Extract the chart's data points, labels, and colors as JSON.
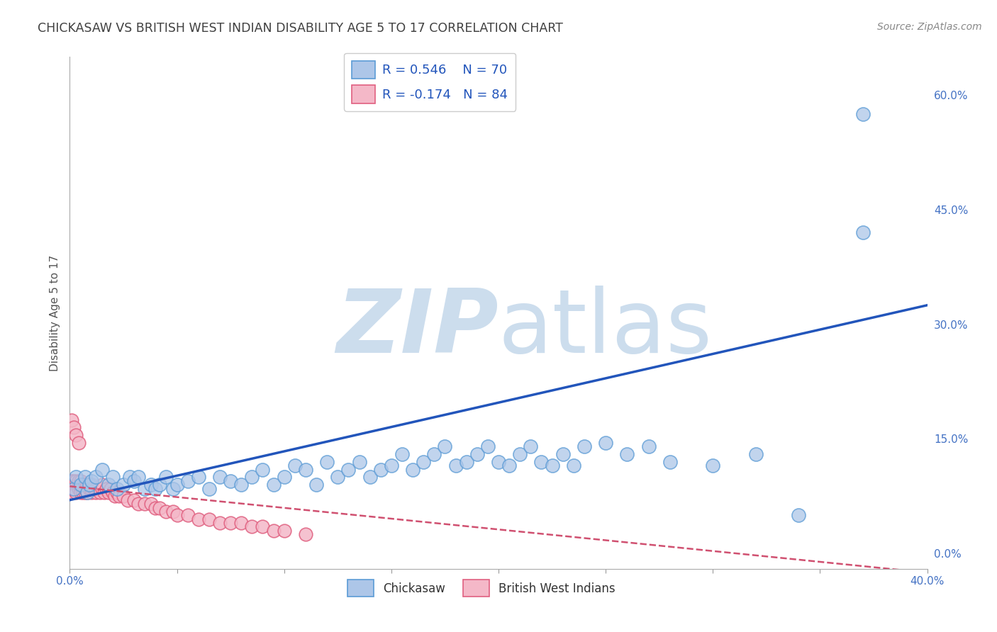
{
  "title": "CHICKASAW VS BRITISH WEST INDIAN DISABILITY AGE 5 TO 17 CORRELATION CHART",
  "source": "Source: ZipAtlas.com",
  "ylabel": "Disability Age 5 to 17",
  "ytick_labels": [
    "0.0%",
    "15.0%",
    "30.0%",
    "45.0%",
    "60.0%"
  ],
  "ytick_values": [
    0.0,
    0.15,
    0.3,
    0.45,
    0.6
  ],
  "xlim": [
    0.0,
    0.4
  ],
  "ylim": [
    -0.02,
    0.65
  ],
  "chickasaw_color": "#adc6e8",
  "chickasaw_edge": "#5b9bd5",
  "bwi_color": "#f4b8c8",
  "bwi_edge": "#e06080",
  "trendline_chickasaw_color": "#2255bb",
  "trendline_bwi_color": "#d05070",
  "R_chickasaw": 0.546,
  "N_chickasaw": 70,
  "R_bwi": -0.174,
  "N_bwi": 84,
  "legend_label_chickasaw": "Chickasaw",
  "legend_label_bwi": "British West Indians",
  "background_color": "#ffffff",
  "grid_color": "#cccccc",
  "watermark_color": "#ccdded",
  "title_color": "#404040",
  "axis_label_color": "#555555",
  "tick_label_color": "#4472c4",
  "trendline_chick_x0": 0.0,
  "trendline_chick_y0": 0.07,
  "trendline_chick_x1": 0.4,
  "trendline_chick_y1": 0.325,
  "trendline_bwi_x0": 0.0,
  "trendline_bwi_y0": 0.088,
  "trendline_bwi_x1": 0.4,
  "trendline_bwi_y1": -0.025,
  "chickasaw_x": [
    0.002,
    0.003,
    0.005,
    0.007,
    0.008,
    0.009,
    0.01,
    0.012,
    0.015,
    0.018,
    0.02,
    0.022,
    0.025,
    0.028,
    0.03,
    0.032,
    0.035,
    0.038,
    0.04,
    0.042,
    0.045,
    0.048,
    0.05,
    0.055,
    0.06,
    0.065,
    0.07,
    0.075,
    0.08,
    0.085,
    0.09,
    0.095,
    0.1,
    0.105,
    0.11,
    0.115,
    0.12,
    0.125,
    0.13,
    0.135,
    0.14,
    0.145,
    0.15,
    0.155,
    0.16,
    0.165,
    0.17,
    0.175,
    0.18,
    0.185,
    0.19,
    0.195,
    0.2,
    0.205,
    0.21,
    0.215,
    0.22,
    0.225,
    0.23,
    0.235,
    0.24,
    0.25,
    0.26,
    0.27,
    0.28,
    0.3,
    0.32,
    0.34,
    0.37,
    0.37
  ],
  "chickasaw_y": [
    0.085,
    0.1,
    0.09,
    0.1,
    0.08,
    0.09,
    0.095,
    0.1,
    0.11,
    0.09,
    0.1,
    0.085,
    0.09,
    0.1,
    0.095,
    0.1,
    0.085,
    0.09,
    0.085,
    0.09,
    0.1,
    0.085,
    0.09,
    0.095,
    0.1,
    0.085,
    0.1,
    0.095,
    0.09,
    0.1,
    0.11,
    0.09,
    0.1,
    0.115,
    0.11,
    0.09,
    0.12,
    0.1,
    0.11,
    0.12,
    0.1,
    0.11,
    0.115,
    0.13,
    0.11,
    0.12,
    0.13,
    0.14,
    0.115,
    0.12,
    0.13,
    0.14,
    0.12,
    0.115,
    0.13,
    0.14,
    0.12,
    0.115,
    0.13,
    0.115,
    0.14,
    0.145,
    0.13,
    0.14,
    0.12,
    0.115,
    0.13,
    0.05,
    0.42,
    0.575
  ],
  "bwi_x": [
    0.001,
    0.001,
    0.001,
    0.001,
    0.001,
    0.001,
    0.001,
    0.001,
    0.001,
    0.001,
    0.002,
    0.002,
    0.002,
    0.002,
    0.002,
    0.003,
    0.003,
    0.003,
    0.003,
    0.003,
    0.004,
    0.004,
    0.004,
    0.005,
    0.005,
    0.005,
    0.005,
    0.005,
    0.006,
    0.006,
    0.006,
    0.007,
    0.007,
    0.007,
    0.007,
    0.008,
    0.008,
    0.008,
    0.009,
    0.009,
    0.01,
    0.01,
    0.01,
    0.011,
    0.012,
    0.012,
    0.013,
    0.014,
    0.015,
    0.015,
    0.016,
    0.017,
    0.018,
    0.019,
    0.02,
    0.021,
    0.022,
    0.023,
    0.025,
    0.027,
    0.03,
    0.032,
    0.035,
    0.038,
    0.04,
    0.042,
    0.045,
    0.048,
    0.05,
    0.055,
    0.06,
    0.065,
    0.07,
    0.075,
    0.08,
    0.085,
    0.09,
    0.095,
    0.1,
    0.11,
    0.001,
    0.002,
    0.003,
    0.004
  ],
  "bwi_y": [
    0.085,
    0.09,
    0.095,
    0.08,
    0.09,
    0.085,
    0.09,
    0.095,
    0.08,
    0.085,
    0.09,
    0.085,
    0.09,
    0.095,
    0.085,
    0.09,
    0.085,
    0.09,
    0.095,
    0.08,
    0.085,
    0.09,
    0.095,
    0.085,
    0.09,
    0.095,
    0.085,
    0.08,
    0.09,
    0.085,
    0.08,
    0.085,
    0.09,
    0.08,
    0.085,
    0.085,
    0.09,
    0.08,
    0.085,
    0.09,
    0.08,
    0.085,
    0.09,
    0.085,
    0.08,
    0.085,
    0.085,
    0.08,
    0.085,
    0.09,
    0.08,
    0.085,
    0.08,
    0.085,
    0.08,
    0.075,
    0.08,
    0.075,
    0.075,
    0.07,
    0.07,
    0.065,
    0.065,
    0.065,
    0.06,
    0.06,
    0.055,
    0.055,
    0.05,
    0.05,
    0.045,
    0.045,
    0.04,
    0.04,
    0.04,
    0.035,
    0.035,
    0.03,
    0.03,
    0.025,
    0.175,
    0.165,
    0.155,
    0.145
  ]
}
